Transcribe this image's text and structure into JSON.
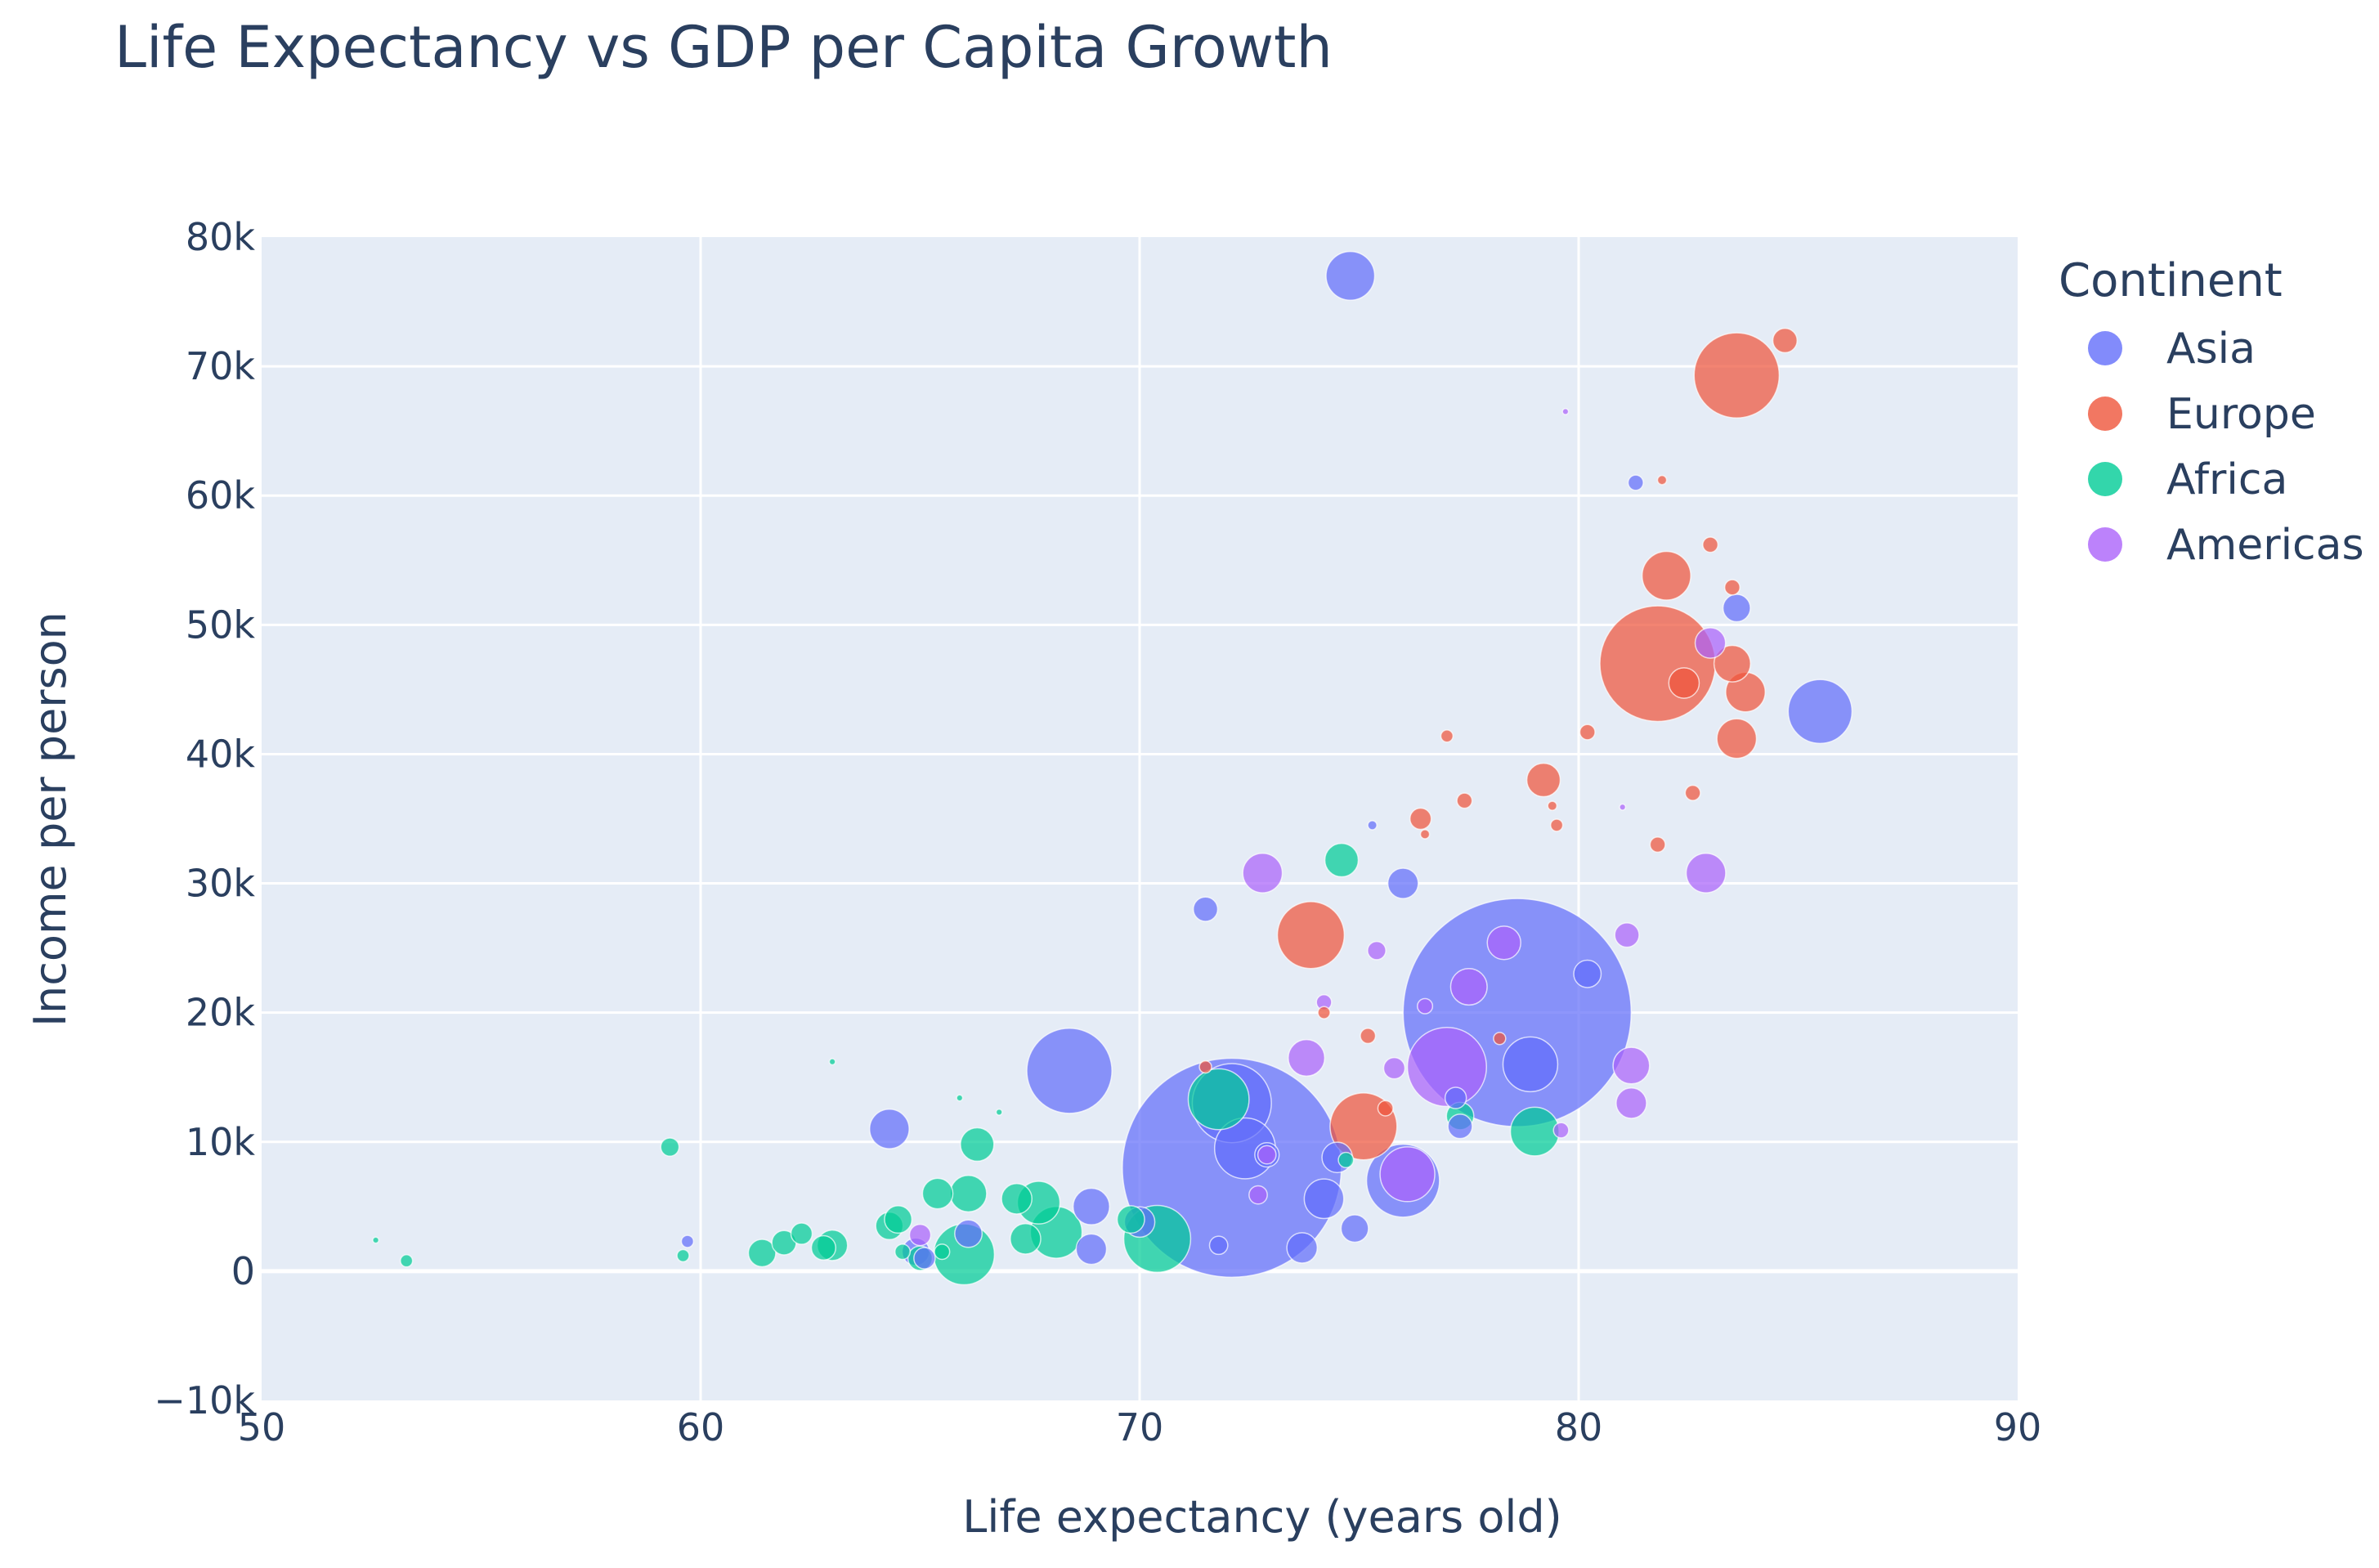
{
  "chart_data": {
    "type": "scatter",
    "title": "Life Expectancy vs GDP per Capita Growth",
    "xlabel": "Life expectancy (years old)",
    "ylabel": "Income per person",
    "xlim": [
      50,
      90
    ],
    "ylim": [
      -10000,
      80000
    ],
    "x_ticks": [
      "50",
      "60",
      "70",
      "80",
      "90"
    ],
    "y_ticks": [
      "−10k",
      "0",
      "10k",
      "20k",
      "30k",
      "40k",
      "50k",
      "60k",
      "70k",
      "80k"
    ],
    "grid": true,
    "legend": {
      "title": "Continent",
      "placement": "right"
    },
    "background_color": "#e5ecf6",
    "series": [
      {
        "name": "Asia",
        "color": "#636efa",
        "points": [
          {
            "x": 74.8,
            "y": 77000,
            "r": 16
          },
          {
            "x": 81.3,
            "y": 61000,
            "r": 5
          },
          {
            "x": 83.6,
            "y": 51300,
            "r": 9
          },
          {
            "x": 85.5,
            "y": 43300,
            "r": 21
          },
          {
            "x": 78.6,
            "y": 20000,
            "r": 75
          },
          {
            "x": 72.1,
            "y": 8000,
            "r": 72
          },
          {
            "x": 68.4,
            "y": 15500,
            "r": 28
          },
          {
            "x": 72.1,
            "y": 13000,
            "r": 26
          },
          {
            "x": 72.4,
            "y": 9500,
            "r": 20
          },
          {
            "x": 64.3,
            "y": 11000,
            "r": 13
          },
          {
            "x": 76.0,
            "y": 30000,
            "r": 10
          },
          {
            "x": 71.5,
            "y": 28000,
            "r": 8
          },
          {
            "x": 78.9,
            "y": 16000,
            "r": 18
          },
          {
            "x": 80.2,
            "y": 23000,
            "r": 9
          },
          {
            "x": 76.0,
            "y": 7000,
            "r": 24
          },
          {
            "x": 74.2,
            "y": 5600,
            "r": 13
          },
          {
            "x": 73.7,
            "y": 1800,
            "r": 10
          },
          {
            "x": 74.5,
            "y": 8800,
            "r": 10
          },
          {
            "x": 68.9,
            "y": 5000,
            "r": 12
          },
          {
            "x": 68.9,
            "y": 1700,
            "r": 10
          },
          {
            "x": 70.0,
            "y": 3800,
            "r": 10
          },
          {
            "x": 74.9,
            "y": 3300,
            "r": 9
          },
          {
            "x": 77.3,
            "y": 11200,
            "r": 8
          },
          {
            "x": 64.9,
            "y": 1500,
            "r": 9
          },
          {
            "x": 65.1,
            "y": 1000,
            "r": 7
          },
          {
            "x": 59.7,
            "y": 2300,
            "r": 4
          },
          {
            "x": 66.1,
            "y": 2900,
            "r": 9
          },
          {
            "x": 72.9,
            "y": 9000,
            "r": 8
          },
          {
            "x": 77.2,
            "y": 13400,
            "r": 7
          },
          {
            "x": 75.3,
            "y": 34500,
            "r": 3
          },
          {
            "x": 71.8,
            "y": 2000,
            "r": 6
          }
        ]
      },
      {
        "name": "Europe",
        "color": "#ef553b",
        "points": [
          {
            "x": 83.6,
            "y": 69300,
            "r": 28
          },
          {
            "x": 84.7,
            "y": 72000,
            "r": 8
          },
          {
            "x": 81.9,
            "y": 61200,
            "r": 3
          },
          {
            "x": 83.0,
            "y": 56200,
            "r": 5
          },
          {
            "x": 82.0,
            "y": 53800,
            "r": 16
          },
          {
            "x": 83.5,
            "y": 52900,
            "r": 5
          },
          {
            "x": 81.8,
            "y": 47000,
            "r": 38
          },
          {
            "x": 83.5,
            "y": 47000,
            "r": 12
          },
          {
            "x": 83.8,
            "y": 44800,
            "r": 13
          },
          {
            "x": 83.6,
            "y": 41200,
            "r": 13
          },
          {
            "x": 82.4,
            "y": 45500,
            "r": 10
          },
          {
            "x": 80.2,
            "y": 41700,
            "r": 5
          },
          {
            "x": 77.0,
            "y": 41400,
            "r": 4
          },
          {
            "x": 79.2,
            "y": 38000,
            "r": 11
          },
          {
            "x": 82.6,
            "y": 37000,
            "r": 5
          },
          {
            "x": 77.4,
            "y": 36400,
            "r": 5
          },
          {
            "x": 79.4,
            "y": 36000,
            "r": 3
          },
          {
            "x": 76.4,
            "y": 35000,
            "r": 7
          },
          {
            "x": 79.5,
            "y": 34500,
            "r": 4
          },
          {
            "x": 81.8,
            "y": 33000,
            "r": 5
          },
          {
            "x": 73.9,
            "y": 26000,
            "r": 22
          },
          {
            "x": 75.1,
            "y": 11200,
            "r": 22
          },
          {
            "x": 74.2,
            "y": 20000,
            "r": 4
          },
          {
            "x": 75.2,
            "y": 18200,
            "r": 5
          },
          {
            "x": 76.5,
            "y": 33800,
            "r": 3
          },
          {
            "x": 71.5,
            "y": 15800,
            "r": 4
          },
          {
            "x": 75.6,
            "y": 12600,
            "r": 5
          },
          {
            "x": 78.2,
            "y": 18000,
            "r": 4
          }
        ]
      },
      {
        "name": "Africa",
        "color": "#00cc96",
        "points": [
          {
            "x": 74.6,
            "y": 31800,
            "r": 11
          },
          {
            "x": 71.8,
            "y": 13300,
            "r": 20
          },
          {
            "x": 79.0,
            "y": 10800,
            "r": 16
          },
          {
            "x": 77.3,
            "y": 12000,
            "r": 9
          },
          {
            "x": 70.4,
            "y": 2500,
            "r": 22
          },
          {
            "x": 69.8,
            "y": 4000,
            "r": 9
          },
          {
            "x": 68.1,
            "y": 3000,
            "r": 17
          },
          {
            "x": 67.7,
            "y": 5300,
            "r": 14
          },
          {
            "x": 67.2,
            "y": 5600,
            "r": 10
          },
          {
            "x": 66.0,
            "y": 1300,
            "r": 20
          },
          {
            "x": 66.1,
            "y": 6000,
            "r": 12
          },
          {
            "x": 65.4,
            "y": 6000,
            "r": 10
          },
          {
            "x": 66.3,
            "y": 9800,
            "r": 11
          },
          {
            "x": 65.0,
            "y": 1000,
            "r": 8
          },
          {
            "x": 65.5,
            "y": 1500,
            "r": 5
          },
          {
            "x": 64.3,
            "y": 3500,
            "r": 9
          },
          {
            "x": 64.5,
            "y": 4000,
            "r": 9
          },
          {
            "x": 67.4,
            "y": 2500,
            "r": 10
          },
          {
            "x": 63.0,
            "y": 2000,
            "r": 10
          },
          {
            "x": 62.8,
            "y": 1800,
            "r": 8
          },
          {
            "x": 62.3,
            "y": 2900,
            "r": 7
          },
          {
            "x": 61.9,
            "y": 2200,
            "r": 8
          },
          {
            "x": 61.4,
            "y": 1400,
            "r": 9
          },
          {
            "x": 59.3,
            "y": 9600,
            "r": 6
          },
          {
            "x": 59.6,
            "y": 1200,
            "r": 4
          },
          {
            "x": 53.3,
            "y": 800,
            "r": 4
          },
          {
            "x": 52.6,
            "y": 2400,
            "r": 2
          },
          {
            "x": 63.0,
            "y": 16200,
            "r": 2
          },
          {
            "x": 65.9,
            "y": 13400,
            "r": 2
          },
          {
            "x": 66.8,
            "y": 12300,
            "r": 2
          },
          {
            "x": 64.6,
            "y": 1500,
            "r": 5
          },
          {
            "x": 74.7,
            "y": 8600,
            "r": 5
          }
        ]
      },
      {
        "name": "Americas",
        "color": "#ab63fa",
        "points": [
          {
            "x": 83.0,
            "y": 48600,
            "r": 10
          },
          {
            "x": 82.9,
            "y": 30800,
            "r": 13
          },
          {
            "x": 72.8,
            "y": 30800,
            "r": 13
          },
          {
            "x": 78.3,
            "y": 25400,
            "r": 11
          },
          {
            "x": 81.1,
            "y": 26000,
            "r": 8
          },
          {
            "x": 77.5,
            "y": 22000,
            "r": 12
          },
          {
            "x": 77.0,
            "y": 15800,
            "r": 26
          },
          {
            "x": 81.2,
            "y": 15900,
            "r": 12
          },
          {
            "x": 81.2,
            "y": 13000,
            "r": 10
          },
          {
            "x": 73.8,
            "y": 16500,
            "r": 12
          },
          {
            "x": 76.1,
            "y": 7500,
            "r": 18
          },
          {
            "x": 75.8,
            "y": 15700,
            "r": 7
          },
          {
            "x": 75.4,
            "y": 24800,
            "r": 6
          },
          {
            "x": 74.2,
            "y": 20800,
            "r": 5
          },
          {
            "x": 79.6,
            "y": 10900,
            "r": 5
          },
          {
            "x": 72.7,
            "y": 5900,
            "r": 6
          },
          {
            "x": 72.9,
            "y": 9000,
            "r": 6
          },
          {
            "x": 76.5,
            "y": 20500,
            "r": 5
          },
          {
            "x": 79.7,
            "y": 66500,
            "r": 2
          },
          {
            "x": 81.0,
            "y": 35900,
            "r": 2
          },
          {
            "x": 65.0,
            "y": 2800,
            "r": 7
          }
        ]
      }
    ]
  }
}
